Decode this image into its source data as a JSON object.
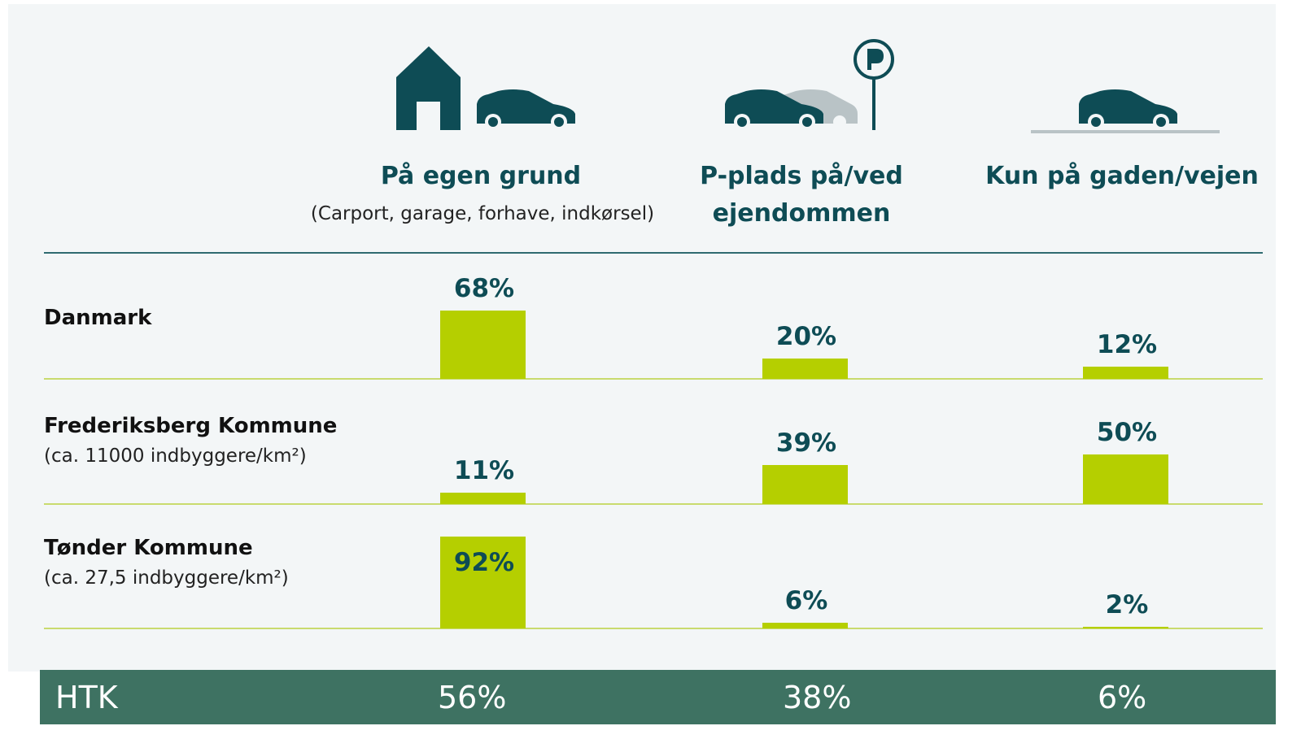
{
  "chart_data": {
    "type": "bar",
    "categories": [
      "På egen grund",
      "P-plads på/ved ejendommen",
      "Kun på gaden/vejen"
    ],
    "category_notes": [
      "(Carport, garage, forhave, indkørsel)",
      null,
      null
    ],
    "color": "#b5cf00",
    "series": [
      {
        "name": "Danmark",
        "note": null,
        "values": [
          68,
          20,
          12
        ],
        "value_labels": [
          "68%",
          "20%",
          "12%"
        ]
      },
      {
        "name": "Frederiksberg Kommune",
        "note": "(ca. 11000 indbyggere/km²)",
        "values": [
          11,
          39,
          50
        ],
        "value_labels": [
          "11%",
          "39%",
          "50%"
        ]
      },
      {
        "name": "Tønder Kommune",
        "note": "(ca. 27,5 indbyggere/km²)",
        "values": [
          92,
          6,
          2
        ],
        "value_labels": [
          "92%",
          "6%",
          "2%"
        ]
      }
    ],
    "footer": {
      "label": "HTK",
      "cells": [
        "56%",
        "38%",
        "6%"
      ]
    }
  }
}
